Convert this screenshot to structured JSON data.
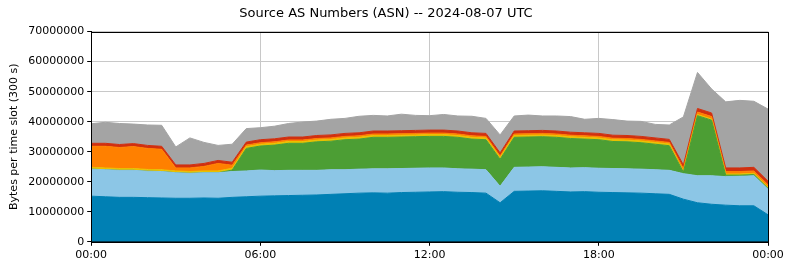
{
  "chart_data": {
    "type": "area",
    "title": "Source AS Numbers (ASN) -- 2024-08-07 UTC",
    "y_label": "Bytes per time slot (300 s)",
    "stacked": true,
    "grid": true,
    "categories": [
      "00:00",
      null,
      null,
      null,
      null,
      null,
      null,
      null,
      null,
      null,
      null,
      null,
      "06:00",
      null,
      null,
      null,
      null,
      null,
      null,
      null,
      null,
      null,
      null,
      null,
      "12:00",
      null,
      null,
      null,
      null,
      null,
      null,
      null,
      null,
      null,
      null,
      null,
      "18:00",
      null,
      null,
      null,
      null,
      null,
      null,
      null,
      null,
      null,
      null,
      null,
      "00:00"
    ],
    "ylim": [
      0,
      70000000
    ],
    "yticks": [
      0,
      10000000,
      20000000,
      30000000,
      40000000,
      50000000,
      60000000,
      70000000
    ],
    "series": [
      {
        "color": "#0080b4",
        "values": [
          15200000,
          15000000,
          14800000,
          14800000,
          14700000,
          14600000,
          14500000,
          14500000,
          14600000,
          14500000,
          14800000,
          15000000,
          15200000,
          15300000,
          15400000,
          15500000,
          15600000,
          15800000,
          16000000,
          16200000,
          16300000,
          16200000,
          16400000,
          16500000,
          16600000,
          16700000,
          16500000,
          16400000,
          16200000,
          13000000,
          16800000,
          16900000,
          17000000,
          16800000,
          16600000,
          16700000,
          16500000,
          16400000,
          16300000,
          16200000,
          16000000,
          15800000,
          14200000,
          13000000,
          12500000,
          12200000,
          12000000,
          12000000,
          9000000
        ]
      },
      {
        "color": "#8cc6e6",
        "values": [
          9000000,
          9000000,
          9000000,
          9000000,
          8800000,
          8800000,
          8500000,
          8300000,
          8400000,
          8500000,
          8600000,
          8600000,
          8700000,
          8400000,
          8400000,
          8300000,
          8200000,
          8200000,
          8000000,
          8000000,
          8000000,
          8100000,
          8000000,
          8000000,
          8000000,
          7900000,
          7800000,
          7800000,
          7800000,
          5500000,
          8000000,
          8000000,
          8000000,
          8000000,
          8000000,
          8000000,
          8000000,
          8000000,
          8000000,
          8000000,
          8000000,
          8000000,
          8500000,
          9000000,
          9500000,
          9500000,
          9800000,
          10000000,
          8500000
        ]
      },
      {
        "color": "#4c9e34",
        "values": [
          0,
          0,
          0,
          0,
          0,
          0,
          0,
          0,
          0,
          0,
          500000,
          7500000,
          8000000,
          8500000,
          9000000,
          9000000,
          9500000,
          9500000,
          10000000,
          10000000,
          10500000,
          10500000,
          10500000,
          10500000,
          10500000,
          10500000,
          10500000,
          10000000,
          10000000,
          9000000,
          10000000,
          10000000,
          10000000,
          10000000,
          9800000,
          9500000,
          9500000,
          9000000,
          9000000,
          8800000,
          8500000,
          8200000,
          500000,
          20000000,
          18500000,
          500000,
          400000,
          400000,
          300000
        ]
      },
      {
        "color": "#e8c000",
        "values": [
          600000,
          600000,
          600000,
          600000,
          600000,
          600000,
          600000,
          600000,
          600000,
          600000,
          600000,
          600000,
          600000,
          600000,
          600000,
          600000,
          600000,
          600000,
          600000,
          600000,
          600000,
          600000,
          600000,
          600000,
          600000,
          600000,
          600000,
          600000,
          600000,
          600000,
          600000,
          600000,
          600000,
          600000,
          600000,
          600000,
          600000,
          600000,
          600000,
          600000,
          600000,
          600000,
          400000,
          400000,
          400000,
          400000,
          400000,
          400000,
          400000
        ]
      },
      {
        "color": "#ff8000",
        "values": [
          7000000,
          7200000,
          7000000,
          7300000,
          7000000,
          6800000,
          1000000,
          1200000,
          1500000,
          2500000,
          1000000,
          500000,
          500000,
          500000,
          500000,
          500000,
          500000,
          500000,
          500000,
          500000,
          500000,
          500000,
          500000,
          500000,
          500000,
          500000,
          500000,
          500000,
          500000,
          500000,
          500000,
          500000,
          500000,
          500000,
          500000,
          500000,
          500000,
          500000,
          500000,
          500000,
          500000,
          500000,
          800000,
          800000,
          800000,
          800000,
          800000,
          800000,
          800000
        ]
      },
      {
        "color": "#d03010",
        "values": [
          1000000,
          1000000,
          1000000,
          1000000,
          1000000,
          1000000,
          1000000,
          1000000,
          1000000,
          1000000,
          1000000,
          1000000,
          1000000,
          1000000,
          1000000,
          1000000,
          1000000,
          1000000,
          1000000,
          1000000,
          1000000,
          1000000,
          1000000,
          1000000,
          1000000,
          1000000,
          1000000,
          1000000,
          1000000,
          1000000,
          1000000,
          1000000,
          1000000,
          1000000,
          1000000,
          1000000,
          1000000,
          1000000,
          1000000,
          1000000,
          1000000,
          1000000,
          1200000,
          1200000,
          1200000,
          1200000,
          1200000,
          1200000,
          1200000
        ]
      },
      {
        "color": "#a4a4a4",
        "values": [
          6500000,
          7000000,
          7000000,
          6500000,
          6800000,
          7000000,
          6000000,
          9000000,
          7000000,
          5000000,
          6000000,
          4500000,
          4000000,
          4200000,
          4500000,
          5000000,
          4800000,
          5200000,
          5000000,
          5500000,
          5200000,
          5000000,
          5500000,
          5000000,
          4800000,
          5200000,
          5000000,
          5500000,
          5000000,
          6000000,
          5000000,
          5200000,
          4800000,
          5000000,
          5200000,
          4500000,
          5000000,
          5200000,
          4800000,
          5000000,
          4500000,
          4800000,
          16000000,
          12000000,
          8000000,
          22000000,
          22500000,
          22000000,
          24000000
        ]
      }
    ]
  }
}
